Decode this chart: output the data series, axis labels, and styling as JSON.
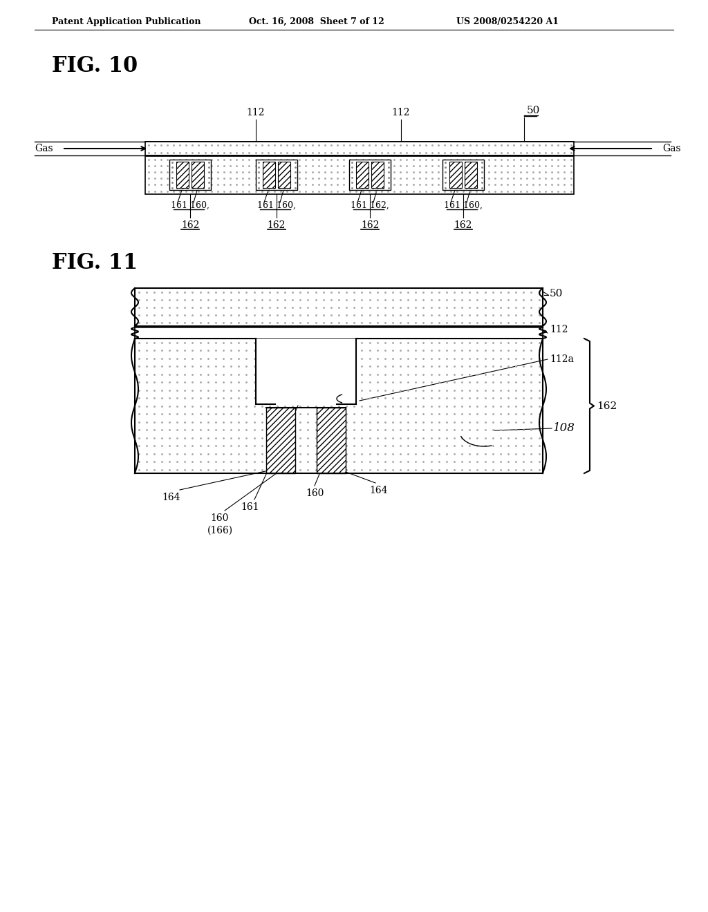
{
  "bg_color": "#ffffff",
  "header_text": "Patent Application Publication",
  "header_date": "Oct. 16, 2008  Sheet 7 of 12",
  "header_patent": "US 2008/0254220 A1",
  "fig10_label": "FIG. 10",
  "fig11_label": "FIG. 11",
  "dot_color": "#c8c8c8",
  "hatch_color": "#555555",
  "line_color": "#000000"
}
